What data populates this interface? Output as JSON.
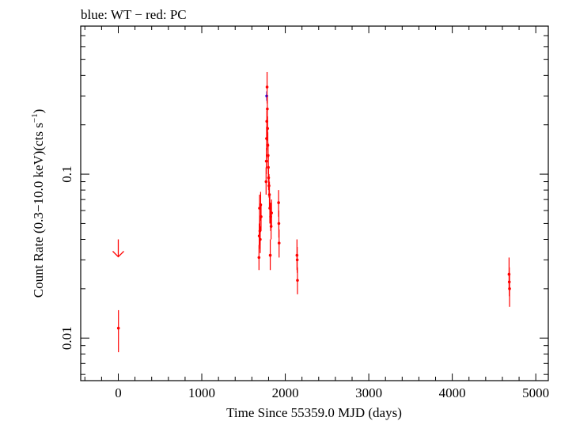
{
  "chart_data": {
    "type": "scatter",
    "title": "blue: WT − red: PC",
    "xlabel": "Time Since 55359.0 MJD (days)",
    "ylabel_main": "Count Rate (0.3−10.0 keV)(cts s",
    "ylabel_sup": "−1",
    "ylabel_close": ")",
    "xscale": "linear",
    "yscale": "log",
    "xlim": [
      -450,
      5150
    ],
    "ylim": [
      0.0055,
      0.8
    ],
    "xticks": [
      0,
      1000,
      2000,
      3000,
      4000,
      5000
    ],
    "xtick_labels": [
      "0",
      "1000",
      "2000",
      "3000",
      "4000",
      "5000"
    ],
    "yticks": [
      0.01,
      0.1
    ],
    "ytick_labels": [
      "0.01",
      "0.1"
    ],
    "grid": false,
    "legend": "none",
    "series": [
      {
        "name": "WT",
        "color": "#0000ff",
        "points": [
          {
            "x": 1778,
            "y": 0.3,
            "ylo": 0.28,
            "yhi": 0.32
          }
        ]
      },
      {
        "name": "PC",
        "color": "#ff0000",
        "points": [
          {
            "x": 2,
            "y": 0.0115,
            "ylo": 0.0082,
            "yhi": 0.0148
          },
          {
            "x": 1685,
            "y": 0.031,
            "ylo": 0.026,
            "yhi": 0.037
          },
          {
            "x": 1688,
            "y": 0.042,
            "ylo": 0.035,
            "yhi": 0.05
          },
          {
            "x": 1692,
            "y": 0.062,
            "ylo": 0.05,
            "yhi": 0.075
          },
          {
            "x": 1696,
            "y": 0.045,
            "ylo": 0.037,
            "yhi": 0.054
          },
          {
            "x": 1700,
            "y": 0.04,
            "ylo": 0.033,
            "yhi": 0.048
          },
          {
            "x": 1705,
            "y": 0.065,
            "ylo": 0.052,
            "yhi": 0.078
          },
          {
            "x": 1710,
            "y": 0.055,
            "ylo": 0.045,
            "yhi": 0.066
          },
          {
            "x": 1770,
            "y": 0.09,
            "ylo": 0.075,
            "yhi": 0.11
          },
          {
            "x": 1773,
            "y": 0.12,
            "ylo": 0.1,
            "yhi": 0.145
          },
          {
            "x": 1776,
            "y": 0.165,
            "ylo": 0.14,
            "yhi": 0.195
          },
          {
            "x": 1779,
            "y": 0.21,
            "ylo": 0.18,
            "yhi": 0.245
          },
          {
            "x": 1782,
            "y": 0.34,
            "ylo": 0.27,
            "yhi": 0.42
          },
          {
            "x": 1785,
            "y": 0.25,
            "ylo": 0.21,
            "yhi": 0.295
          },
          {
            "x": 1788,
            "y": 0.19,
            "ylo": 0.16,
            "yhi": 0.225
          },
          {
            "x": 1791,
            "y": 0.15,
            "ylo": 0.125,
            "yhi": 0.18
          },
          {
            "x": 1794,
            "y": 0.13,
            "ylo": 0.11,
            "yhi": 0.155
          },
          {
            "x": 1797,
            "y": 0.11,
            "ylo": 0.092,
            "yhi": 0.13
          },
          {
            "x": 1800,
            "y": 0.095,
            "ylo": 0.08,
            "yhi": 0.112
          },
          {
            "x": 1805,
            "y": 0.085,
            "ylo": 0.072,
            "yhi": 0.1
          },
          {
            "x": 1810,
            "y": 0.075,
            "ylo": 0.062,
            "yhi": 0.09
          },
          {
            "x": 1815,
            "y": 0.062,
            "ylo": 0.05,
            "yhi": 0.076
          },
          {
            "x": 1820,
            "y": 0.032,
            "ylo": 0.026,
            "yhi": 0.04
          },
          {
            "x": 1825,
            "y": 0.055,
            "ylo": 0.045,
            "yhi": 0.067
          },
          {
            "x": 1830,
            "y": 0.048,
            "ylo": 0.04,
            "yhi": 0.058
          },
          {
            "x": 1835,
            "y": 0.058,
            "ylo": 0.048,
            "yhi": 0.07
          },
          {
            "x": 1920,
            "y": 0.067,
            "ylo": 0.055,
            "yhi": 0.08
          },
          {
            "x": 1923,
            "y": 0.05,
            "ylo": 0.041,
            "yhi": 0.06
          },
          {
            "x": 1926,
            "y": 0.038,
            "ylo": 0.031,
            "yhi": 0.046
          },
          {
            "x": 2140,
            "y": 0.032,
            "ylo": 0.026,
            "yhi": 0.04
          },
          {
            "x": 2143,
            "y": 0.03,
            "ylo": 0.025,
            "yhi": 0.036
          },
          {
            "x": 2146,
            "y": 0.0225,
            "ylo": 0.0185,
            "yhi": 0.027
          },
          {
            "x": 4680,
            "y": 0.0245,
            "ylo": 0.02,
            "yhi": 0.031
          },
          {
            "x": 4683,
            "y": 0.022,
            "ylo": 0.018,
            "yhi": 0.027
          },
          {
            "x": 4686,
            "y": 0.02,
            "ylo": 0.0155,
            "yhi": 0.025
          }
        ],
        "upper_limits": [
          {
            "x": 0,
            "y": 0.04
          }
        ]
      }
    ]
  }
}
